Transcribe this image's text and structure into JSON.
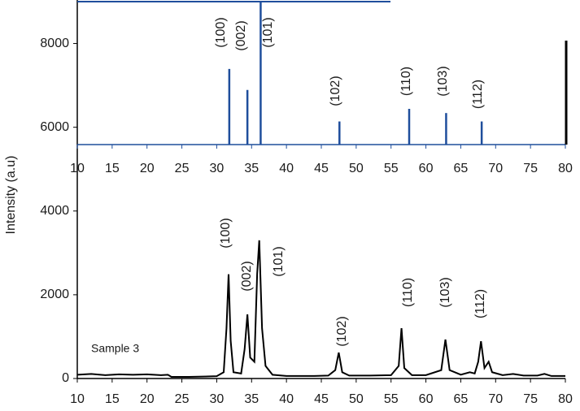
{
  "chart_data": [
    {
      "type": "line",
      "y_label": "Intensity (a.u)",
      "xlim": [
        10,
        80
      ],
      "xticks": [
        10,
        15,
        20,
        25,
        30,
        35,
        40,
        45,
        50,
        55,
        60,
        65,
        70,
        75,
        80
      ],
      "ylim": [
        0,
        9000
      ],
      "yticks": [
        0,
        2000,
        4000,
        6000,
        8000
      ],
      "x": [
        10,
        12,
        14,
        16,
        18,
        20,
        22,
        23,
        23.5,
        26,
        28,
        30,
        31,
        31.4,
        31.7,
        32.0,
        32.4,
        33.5,
        34.0,
        34.4,
        34.8,
        35.4,
        35.8,
        36.1,
        36.5,
        37,
        38,
        40,
        42,
        44,
        46,
        47.0,
        47.5,
        48.0,
        49,
        52,
        55,
        56.1,
        56.5,
        56.9,
        58,
        60,
        62.2,
        62.8,
        63.4,
        65,
        66.3,
        67,
        67.5,
        67.9,
        68.4,
        69.0,
        69.5,
        71,
        72.5,
        74,
        76,
        77,
        78,
        80
      ],
      "series": [
        {
          "name": "Sample 3",
          "color": "#000000",
          "values": [
            90,
            110,
            80,
            100,
            90,
            100,
            80,
            90,
            40,
            40,
            45,
            55,
            150,
            1200,
            2490,
            900,
            150,
            120,
            700,
            1530,
            500,
            400,
            2500,
            3300,
            1200,
            300,
            90,
            60,
            60,
            60,
            70,
            200,
            620,
            150,
            70,
            70,
            80,
            300,
            1200,
            250,
            80,
            80,
            200,
            930,
            200,
            90,
            150,
            120,
            400,
            890,
            250,
            400,
            150,
            80,
            110,
            70,
            70,
            110,
            60,
            60
          ]
        }
      ],
      "annotations": [
        "(100)",
        "(002)",
        "(101)",
        "(102)",
        "(110)",
        "(103)",
        "(112)"
      ]
    },
    {
      "type": "stem",
      "xlim": [
        10,
        80
      ],
      "xticks": [
        10,
        15,
        20,
        25,
        30,
        35,
        40,
        45,
        50,
        55,
        60,
        65,
        70,
        75,
        80
      ],
      "ylim": [
        5600,
        9000
      ],
      "x": [
        31.8,
        34.4,
        36.3,
        47.6,
        57.6,
        62.9,
        68.0
      ],
      "values": [
        7400,
        6900,
        9000,
        6150,
        6450,
        6350,
        6150
      ],
      "color": "#1f4e9c",
      "annotations": [
        "(100)",
        "(002)",
        "(101)",
        "(102)",
        "(110)",
        "(103)",
        "(112)"
      ]
    }
  ]
}
